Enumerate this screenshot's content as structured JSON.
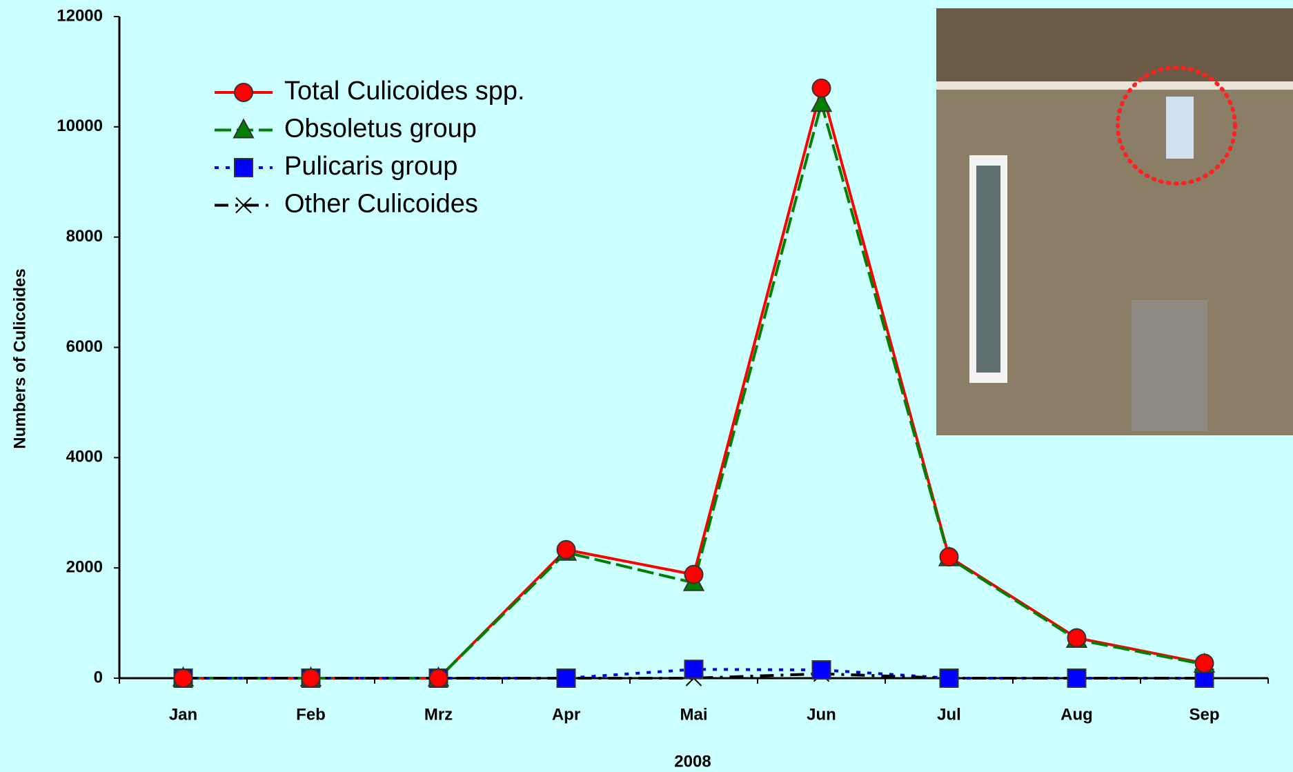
{
  "chart_data": {
    "type": "line",
    "x_label": "2008",
    "y_label": "Numbers of Culicoides",
    "categories": [
      "Jan",
      "Feb",
      "Mrz",
      "Apr",
      "Mai",
      "Jun",
      "Jul",
      "Aug",
      "Sep"
    ],
    "series": [
      {
        "name": "Total Culicoides spp.",
        "color": "#ff0000",
        "marker": "circle",
        "dash": "solid",
        "values": [
          0,
          0,
          0,
          2330,
          1880,
          10700,
          2200,
          730,
          270
        ]
      },
      {
        "name": "Obsoletus group",
        "color": "#008000",
        "marker": "triangle",
        "dash": "dashed",
        "values": [
          0,
          0,
          0,
          2280,
          1730,
          10420,
          2180,
          700,
          250
        ]
      },
      {
        "name": "Pulicaris group",
        "color": "#0000ff",
        "marker": "square",
        "dash": "dotted",
        "values": [
          0,
          0,
          0,
          0,
          160,
          150,
          0,
          0,
          0
        ]
      },
      {
        "name": "Other  Culicoides",
        "color": "#000000",
        "marker": "x",
        "dash": "dashdot",
        "values": [
          0,
          0,
          0,
          0,
          0,
          80,
          0,
          0,
          0
        ]
      }
    ],
    "ylim": [
      0,
      12000
    ],
    "yticks": [
      0,
      2000,
      4000,
      6000,
      8000,
      10000,
      12000
    ],
    "grid": false,
    "legend": "upper-left"
  }
}
